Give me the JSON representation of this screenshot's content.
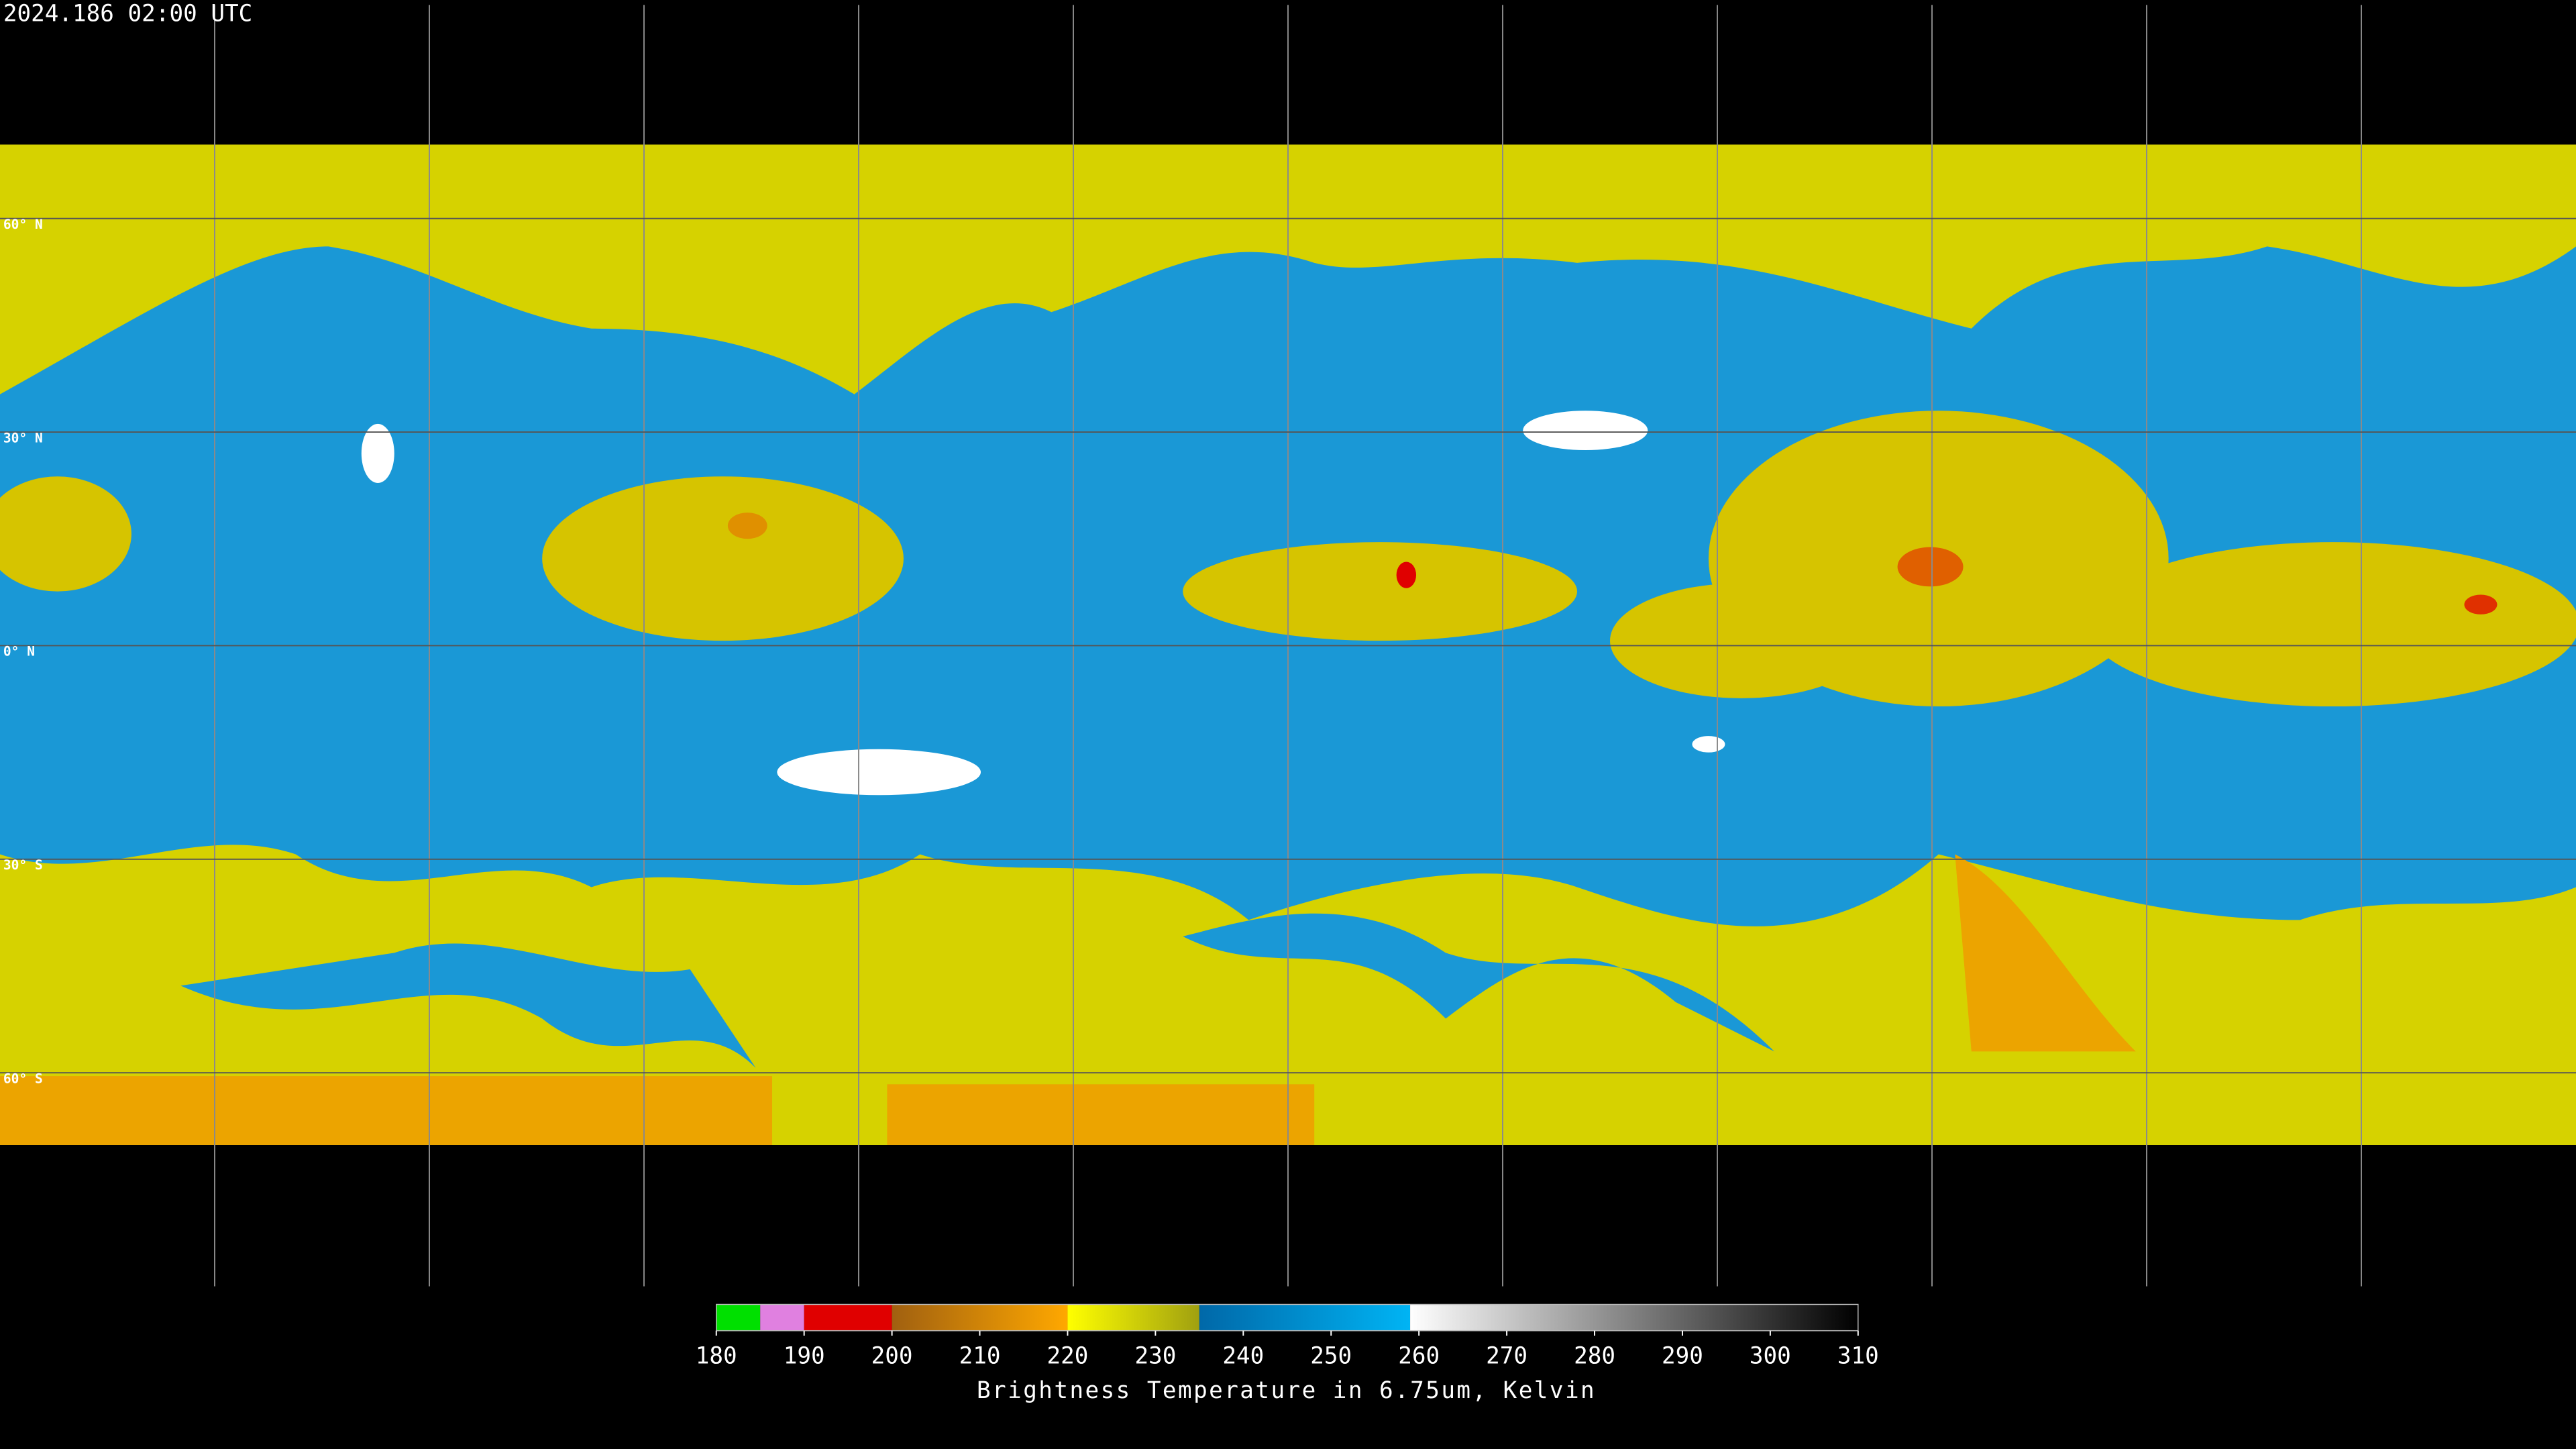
{
  "header": {
    "title": "2024.186 02:00 UTC"
  },
  "map": {
    "xlim": [
      -180,
      180
    ],
    "ylim": [
      -90,
      90
    ],
    "lon_lines": [
      -150,
      -120,
      -90,
      -60,
      -30,
      0,
      30,
      60,
      90,
      120,
      150
    ],
    "lat_lines": [
      {
        "value": 60,
        "label": "60° N"
      },
      {
        "value": 30,
        "label": "30° N"
      },
      {
        "value": 0,
        "label": "0° N"
      },
      {
        "value": -30,
        "label": "30° S"
      },
      {
        "value": -60,
        "label": "60° S"
      }
    ]
  },
  "colorbar": {
    "lim": [
      180,
      310
    ],
    "ticks": [
      180,
      190,
      200,
      210,
      220,
      230,
      240,
      250,
      260,
      270,
      280,
      290,
      300,
      310
    ],
    "segments": [
      {
        "from": 180,
        "to": 185,
        "colors": [
          "#00e000",
          "#00e000"
        ]
      },
      {
        "from": 185,
        "to": 190,
        "colors": [
          "#e080e0",
          "#e080e0"
        ]
      },
      {
        "from": 190,
        "to": 200,
        "colors": [
          "#e00000",
          "#e00000"
        ]
      },
      {
        "from": 200,
        "to": 220,
        "colors": [
          "#a06010",
          "#ffa800"
        ]
      },
      {
        "from": 220,
        "to": 235,
        "colors": [
          "#ffff00",
          "#a0a010"
        ]
      },
      {
        "from": 235,
        "to": 259,
        "colors": [
          "#0068a8",
          "#00b4f4"
        ]
      },
      {
        "from": 259,
        "to": 310,
        "colors": [
          "#ffffff",
          "#000000"
        ]
      }
    ],
    "label": "Brightness Temperature in 6.75um, Kelvin"
  }
}
